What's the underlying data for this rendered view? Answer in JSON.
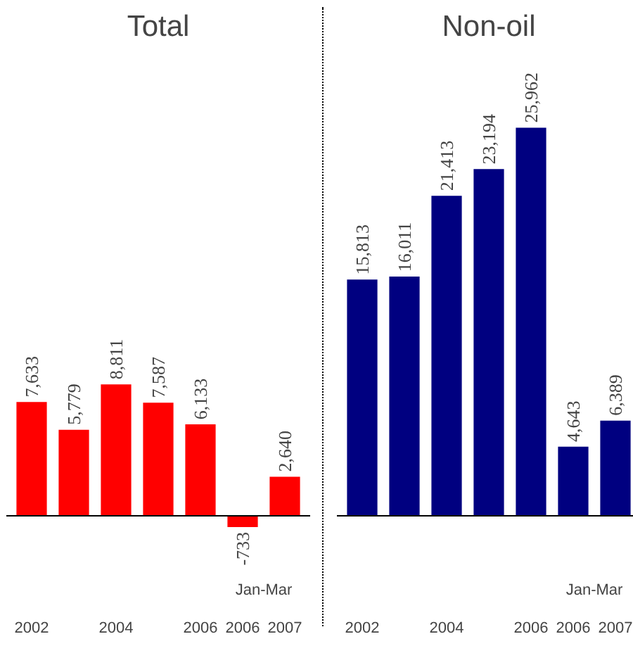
{
  "chart_data": [
    {
      "type": "bar",
      "title": "Total",
      "categories": [
        "2002",
        null,
        "2004",
        null,
        "2006",
        "2006",
        "2007"
      ],
      "values": [
        7633,
        5779,
        8811,
        7587,
        6133,
        -733,
        2640
      ],
      "value_labels": [
        "7,633",
        "5,779",
        "8,811",
        "7,587",
        "6,133",
        "-733",
        "2,640"
      ],
      "color": "#ff0000",
      "tick_labels": "x",
      "annotations": [
        "Jan-Mar"
      ]
    },
    {
      "type": "bar",
      "title": "Non-oil",
      "categories": [
        "2002",
        null,
        "2004",
        null,
        "2006",
        "2006",
        "2007"
      ],
      "values": [
        15813,
        16011,
        21413,
        23194,
        25962,
        4643,
        6389
      ],
      "value_labels": [
        "15,813",
        "16,011",
        "21,413",
        "23,194",
        "25,962",
        "4,643",
        "6,389"
      ],
      "color": "#000080",
      "tick_labels": "x",
      "annotations": [
        "Jan-Mar"
      ]
    }
  ]
}
